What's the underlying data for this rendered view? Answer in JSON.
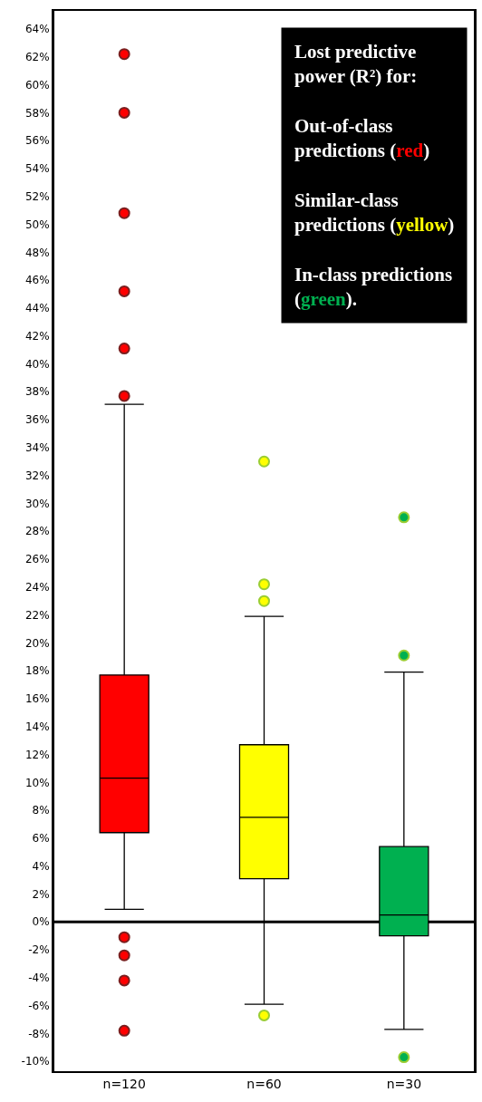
{
  "chart_data": {
    "type": "box",
    "categories": [
      "n=120",
      "n=60",
      "n=30"
    ],
    "colors": [
      "#ff0000",
      "#ffff00",
      "#00b050"
    ],
    "boxes": [
      {
        "low": 0.9,
        "q1": 6.4,
        "median": 10.3,
        "q3": 17.7,
        "high": 37.1,
        "outliers": [
          62.2,
          58.0,
          50.8,
          45.2,
          41.1,
          37.7,
          -1.1,
          -2.4,
          -4.2,
          -7.8
        ]
      },
      {
        "low": -5.9,
        "q1": 3.1,
        "median": 7.5,
        "q3": 12.7,
        "high": 21.9,
        "outliers": [
          33.0,
          24.2,
          23.0,
          -6.7
        ]
      },
      {
        "low": -7.7,
        "q1": -1.0,
        "median": 0.5,
        "q3": 5.4,
        "high": 17.9,
        "outliers": [
          29.0,
          19.1,
          -9.7
        ]
      }
    ],
    "ylim": [
      -10.7,
      65.3
    ],
    "yticks": [
      {
        "value": -10,
        "label": "-10%"
      },
      {
        "value": -8,
        "label": "-8%"
      },
      {
        "value": -6,
        "label": "-6%"
      },
      {
        "value": -4,
        "label": "-4%"
      },
      {
        "value": -2,
        "label": "-2%"
      },
      {
        "value": 0,
        "label": "0%"
      },
      {
        "value": 2,
        "label": "2%"
      },
      {
        "value": 4,
        "label": "4%"
      },
      {
        "value": 6,
        "label": "6%"
      },
      {
        "value": 8,
        "label": "8%"
      },
      {
        "value": 10,
        "label": "10%"
      },
      {
        "value": 12,
        "label": "12%"
      },
      {
        "value": 14,
        "label": "14%"
      },
      {
        "value": 16,
        "label": "16%"
      },
      {
        "value": 18,
        "label": "18%"
      },
      {
        "value": 20,
        "label": "20%"
      },
      {
        "value": 22,
        "label": "22%"
      },
      {
        "value": 24,
        "label": "24%"
      },
      {
        "value": 26,
        "label": "26%"
      },
      {
        "value": 28,
        "label": "28%"
      },
      {
        "value": 30,
        "label": "30%"
      },
      {
        "value": 32,
        "label": "32%"
      },
      {
        "value": 34,
        "label": "34%"
      },
      {
        "value": 36,
        "label": "36%"
      },
      {
        "value": 38,
        "label": "38%"
      },
      {
        "value": 40,
        "label": "40%"
      },
      {
        "value": 42,
        "label": "42%"
      },
      {
        "value": 44,
        "label": "44%"
      },
      {
        "value": 46,
        "label": "46%"
      },
      {
        "value": 48,
        "label": "48%"
      },
      {
        "value": 50,
        "label": "50%"
      },
      {
        "value": 52,
        "label": "52%"
      },
      {
        "value": 54,
        "label": "54%"
      },
      {
        "value": 56,
        "label": "56%"
      },
      {
        "value": 58,
        "label": "58%"
      },
      {
        "value": 60,
        "label": "60%"
      },
      {
        "value": 62,
        "label": "62%"
      },
      {
        "value": 64,
        "label": "64%"
      }
    ],
    "grid": false,
    "ref_lines": [
      {
        "axis": "y",
        "value": 0,
        "color": "#000000"
      }
    ],
    "annotations": [
      "Lost predictive power (R²) for:",
      "Out-of-class predictions (red)",
      "Similar-class predictions (yellow)",
      "In-class predictions (green)."
    ]
  }
}
